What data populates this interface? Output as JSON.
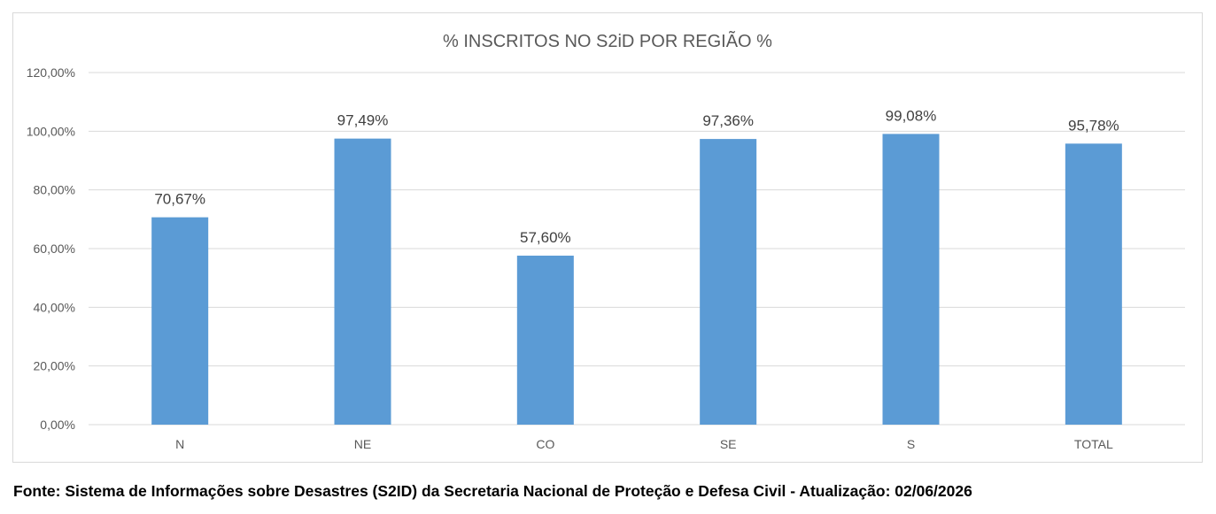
{
  "chart_data": {
    "type": "bar",
    "title": "% INSCRITOS NO S2iD POR REGIÃO %",
    "categories": [
      "N",
      "NE",
      "CO",
      "SE",
      "S",
      "TOTAL"
    ],
    "values": [
      70.67,
      97.49,
      57.6,
      97.36,
      99.08,
      95.78
    ],
    "value_labels": [
      "70,67%",
      "97,49%",
      "57,60%",
      "97,36%",
      "99,08%",
      "95,78%"
    ],
    "ylim": [
      0,
      120
    ],
    "yticks": [
      0,
      20,
      40,
      60,
      80,
      100,
      120
    ],
    "ytick_labels": [
      "0,00%",
      "20,00%",
      "40,00%",
      "60,00%",
      "80,00%",
      "100,00%",
      "120,00%"
    ],
    "xlabel": "",
    "ylabel": "",
    "grid": true,
    "legend": "none",
    "bar_color": "#5b9bd5",
    "grid_color": "#d9d9d9"
  },
  "source_note": "Fonte: Sistema de Informações sobre Desastres (S2ID) da Secretaria Nacional de Proteção e Defesa Civil - Atualização: 02/06/2026"
}
